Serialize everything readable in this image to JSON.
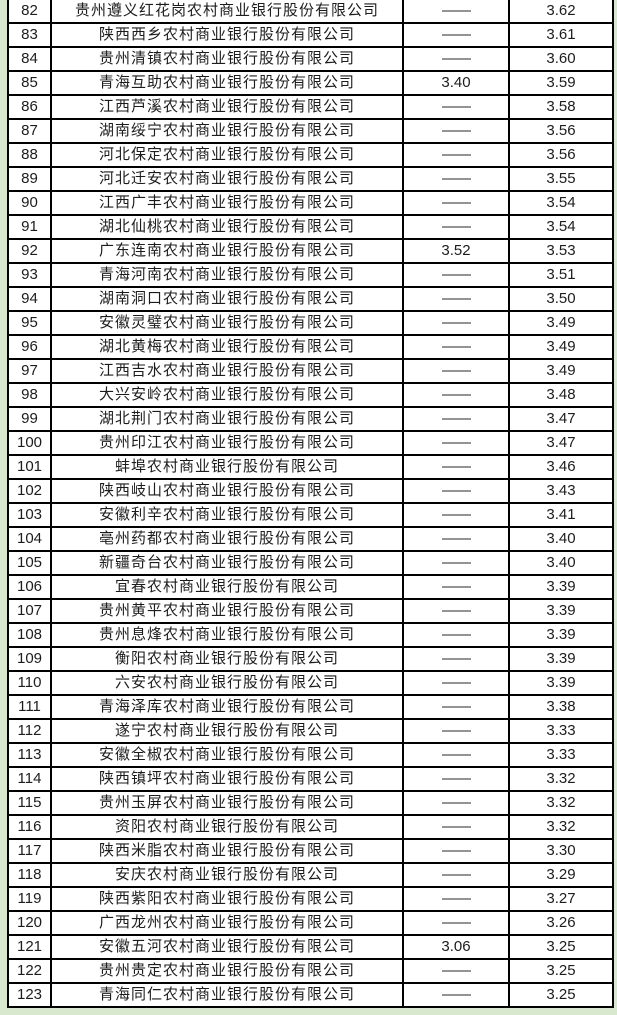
{
  "colors": {
    "page_background": "#d7e8cf",
    "cell_background": "#ffffff",
    "border": "#000000",
    "text": "#1c1c1c"
  },
  "table": {
    "empty_marker": "——",
    "rows": [
      {
        "rank": "82",
        "name": "贵州遵义红花岗农村商业银行股份有限公司",
        "v1": "——",
        "v2": "3.62"
      },
      {
        "rank": "83",
        "name": "陕西西乡农村商业银行股份有限公司",
        "v1": "——",
        "v2": "3.61"
      },
      {
        "rank": "84",
        "name": "贵州清镇农村商业银行股份有限公司",
        "v1": "——",
        "v2": "3.60"
      },
      {
        "rank": "85",
        "name": "青海互助农村商业银行股份有限公司",
        "v1": "3.40",
        "v2": "3.59"
      },
      {
        "rank": "86",
        "name": "江西芦溪农村商业银行股份有限公司",
        "v1": "——",
        "v2": "3.58"
      },
      {
        "rank": "87",
        "name": "湖南绥宁农村商业银行股份有限公司",
        "v1": "——",
        "v2": "3.56"
      },
      {
        "rank": "88",
        "name": "河北保定农村商业银行股份有限公司",
        "v1": "——",
        "v2": "3.56"
      },
      {
        "rank": "89",
        "name": "河北迁安农村商业银行股份有限公司",
        "v1": "——",
        "v2": "3.55"
      },
      {
        "rank": "90",
        "name": "江西广丰农村商业银行股份有限公司",
        "v1": "——",
        "v2": "3.54"
      },
      {
        "rank": "91",
        "name": "湖北仙桃农村商业银行股份有限公司",
        "v1": "——",
        "v2": "3.54"
      },
      {
        "rank": "92",
        "name": "广东连南农村商业银行股份有限公司",
        "v1": "3.52",
        "v2": "3.53"
      },
      {
        "rank": "93",
        "name": "青海河南农村商业银行股份有限公司",
        "v1": "——",
        "v2": "3.51"
      },
      {
        "rank": "94",
        "name": "湖南洞口农村商业银行股份有限公司",
        "v1": "——",
        "v2": "3.50"
      },
      {
        "rank": "95",
        "name": "安徽灵璧农村商业银行股份有限公司",
        "v1": "——",
        "v2": "3.49"
      },
      {
        "rank": "96",
        "name": "湖北黄梅农村商业银行股份有限公司",
        "v1": "——",
        "v2": "3.49"
      },
      {
        "rank": "97",
        "name": "江西吉水农村商业银行股份有限公司",
        "v1": "——",
        "v2": "3.49"
      },
      {
        "rank": "98",
        "name": "大兴安岭农村商业银行股份有限公司",
        "v1": "——",
        "v2": "3.48"
      },
      {
        "rank": "99",
        "name": "湖北荆门农村商业银行股份有限公司",
        "v1": "——",
        "v2": "3.47"
      },
      {
        "rank": "100",
        "name": "贵州印江农村商业银行股份有限公司",
        "v1": "——",
        "v2": "3.47"
      },
      {
        "rank": "101",
        "name": "蚌埠农村商业银行股份有限公司",
        "v1": "——",
        "v2": "3.46"
      },
      {
        "rank": "102",
        "name": "陕西岐山农村商业银行股份有限公司",
        "v1": "——",
        "v2": "3.43"
      },
      {
        "rank": "103",
        "name": "安徽利辛农村商业银行股份有限公司",
        "v1": "——",
        "v2": "3.41"
      },
      {
        "rank": "104",
        "name": "亳州药都农村商业银行股份有限公司",
        "v1": "——",
        "v2": "3.40"
      },
      {
        "rank": "105",
        "name": "新疆奇台农村商业银行股份有限公司",
        "v1": "——",
        "v2": "3.40"
      },
      {
        "rank": "106",
        "name": "宜春农村商业银行股份有限公司",
        "v1": "——",
        "v2": "3.39"
      },
      {
        "rank": "107",
        "name": "贵州黄平农村商业银行股份有限公司",
        "v1": "——",
        "v2": "3.39"
      },
      {
        "rank": "108",
        "name": "贵州息烽农村商业银行股份有限公司",
        "v1": "——",
        "v2": "3.39"
      },
      {
        "rank": "109",
        "name": "衡阳农村商业银行股份有限公司",
        "v1": "——",
        "v2": "3.39"
      },
      {
        "rank": "110",
        "name": "六安农村商业银行股份有限公司",
        "v1": "——",
        "v2": "3.39"
      },
      {
        "rank": "111",
        "name": "青海泽库农村商业银行股份有限公司",
        "v1": "——",
        "v2": "3.38"
      },
      {
        "rank": "112",
        "name": "遂宁农村商业银行股份有限公司",
        "v1": "——",
        "v2": "3.33"
      },
      {
        "rank": "113",
        "name": "安徽全椒农村商业银行股份有限公司",
        "v1": "——",
        "v2": "3.33"
      },
      {
        "rank": "114",
        "name": "陕西镇坪农村商业银行股份有限公司",
        "v1": "——",
        "v2": "3.32"
      },
      {
        "rank": "115",
        "name": "贵州玉屏农村商业银行股份有限公司",
        "v1": "——",
        "v2": "3.32"
      },
      {
        "rank": "116",
        "name": "资阳农村商业银行股份有限公司",
        "v1": "——",
        "v2": "3.32"
      },
      {
        "rank": "117",
        "name": "陕西米脂农村商业银行股份有限公司",
        "v1": "——",
        "v2": "3.30"
      },
      {
        "rank": "118",
        "name": "安庆农村商业银行股份有限公司",
        "v1": "——",
        "v2": "3.29"
      },
      {
        "rank": "119",
        "name": "陕西紫阳农村商业银行股份有限公司",
        "v1": "——",
        "v2": "3.27"
      },
      {
        "rank": "120",
        "name": "广西龙州农村商业银行股份有限公司",
        "v1": "——",
        "v2": "3.26"
      },
      {
        "rank": "121",
        "name": "安徽五河农村商业银行股份有限公司",
        "v1": "3.06",
        "v2": "3.25"
      },
      {
        "rank": "122",
        "name": "贵州贵定农村商业银行股份有限公司",
        "v1": "——",
        "v2": "3.25"
      },
      {
        "rank": "123",
        "name": "青海同仁农村商业银行股份有限公司",
        "v1": "——",
        "v2": "3.25"
      }
    ]
  }
}
